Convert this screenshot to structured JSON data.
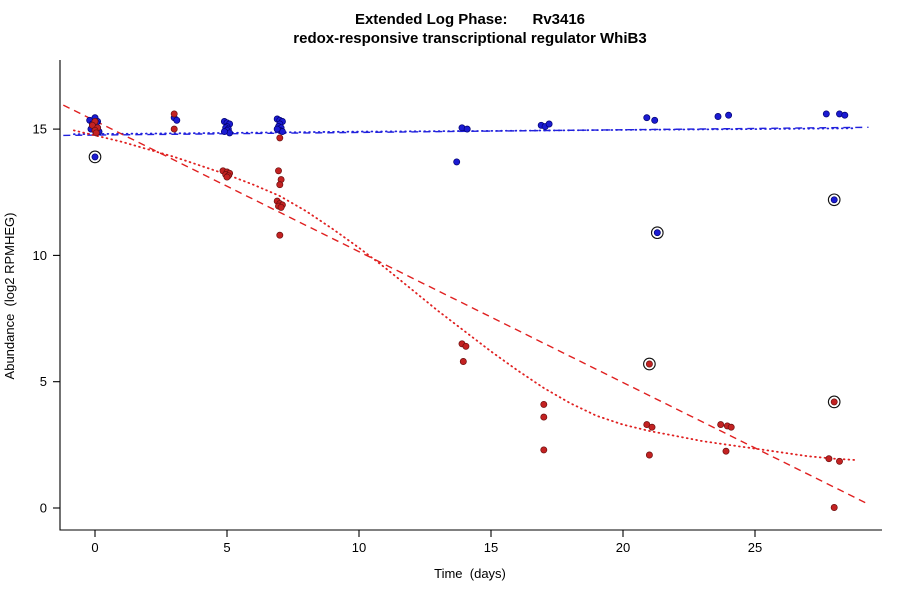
{
  "title": {
    "line1": "Extended Log Phase:      Rv3416",
    "line2": "redox-responsive transcriptional regulator WhiB3"
  },
  "axes": {
    "x_label": "Time  (days)",
    "y_label": "Abundance  (log2 RPMHEG)"
  },
  "colors": {
    "axis": "#000000",
    "blue_point": "#1b1bd2",
    "blue_point_edge": "#000070",
    "blue_line": "#2222dd",
    "red_point": "#c32222",
    "red_point_edge": "#6b0f0f",
    "red_line": "#e02020",
    "highlight_ring": "#111111"
  },
  "chart_data": {
    "type": "scatter",
    "title": "Extended Log Phase: Rv3416 — redox-responsive transcriptional regulator WhiB3",
    "xlabel": "Time (days)",
    "ylabel": "Abundance (log2 RPMHEG)",
    "xlim": [
      -1.3,
      29.5
    ],
    "ylim": [
      -0.6,
      16.6
    ],
    "x_ticks": [
      0,
      5,
      10,
      15,
      20,
      25
    ],
    "y_ticks": [
      0,
      5,
      10,
      15
    ],
    "grid": false,
    "legend": "none",
    "series": [
      {
        "name": "blue-sample",
        "color": "#1b1bd2",
        "stroke": "#000070",
        "points": [
          [
            -0.2,
            15.35
          ],
          [
            0,
            15.45
          ],
          [
            0.1,
            15.3
          ],
          [
            -0.1,
            15.2
          ],
          [
            0,
            15.15
          ],
          [
            0.1,
            15.05
          ],
          [
            -0.15,
            15.0
          ],
          [
            0,
            14.95
          ],
          [
            0.15,
            14.9
          ],
          [
            0.05,
            15.25
          ],
          [
            3,
            15.45
          ],
          [
            3.1,
            15.35
          ],
          [
            4.9,
            15.3
          ],
          [
            5,
            15.25
          ],
          [
            5.1,
            15.2
          ],
          [
            5,
            15.1
          ],
          [
            4.95,
            15.05
          ],
          [
            5.05,
            15.0
          ],
          [
            5,
            14.95
          ],
          [
            5.1,
            14.85
          ],
          [
            4.9,
            14.9
          ],
          [
            6.9,
            15.4
          ],
          [
            7,
            15.35
          ],
          [
            7.1,
            15.3
          ],
          [
            7,
            15.2
          ],
          [
            6.95,
            15.1
          ],
          [
            7.05,
            15.05
          ],
          [
            7,
            14.95
          ],
          [
            7.1,
            14.9
          ],
          [
            6.9,
            15.0
          ],
          [
            13.7,
            13.7
          ],
          [
            13.9,
            15.05
          ],
          [
            14.1,
            15.0
          ],
          [
            16.9,
            15.15
          ],
          [
            17.05,
            15.1
          ],
          [
            17.2,
            15.2
          ],
          [
            20.9,
            15.45
          ],
          [
            21.2,
            15.35
          ],
          [
            23.6,
            15.5
          ],
          [
            24.0,
            15.55
          ],
          [
            27.7,
            15.6
          ],
          [
            28.2,
            15.6
          ],
          [
            28.4,
            15.55
          ]
        ]
      },
      {
        "name": "red-sample",
        "color": "#c32222",
        "stroke": "#6b0f0f",
        "points": [
          [
            0,
            15.3
          ],
          [
            -0.1,
            15.15
          ],
          [
            0.1,
            15.05
          ],
          [
            0,
            14.95
          ],
          [
            0.05,
            14.85
          ],
          [
            3,
            15.6
          ],
          [
            3,
            15.0
          ],
          [
            4.85,
            13.35
          ],
          [
            5,
            13.3
          ],
          [
            5.1,
            13.25
          ],
          [
            4.95,
            13.2
          ],
          [
            5.05,
            13.15
          ],
          [
            5,
            13.1
          ],
          [
            7,
            14.65
          ],
          [
            6.95,
            13.35
          ],
          [
            7.05,
            13.0
          ],
          [
            7,
            12.8
          ],
          [
            6.9,
            12.15
          ],
          [
            7,
            12.05
          ],
          [
            7.1,
            12.0
          ],
          [
            6.95,
            11.95
          ],
          [
            7.05,
            11.9
          ],
          [
            7,
            10.8
          ],
          [
            13.9,
            6.5
          ],
          [
            14.05,
            6.4
          ],
          [
            13.95,
            5.8
          ],
          [
            17,
            4.1
          ],
          [
            17,
            3.6
          ],
          [
            17,
            2.3
          ],
          [
            20.9,
            3.3
          ],
          [
            21.1,
            3.2
          ],
          [
            21,
            2.1
          ],
          [
            23.7,
            3.3
          ],
          [
            23.95,
            3.25
          ],
          [
            24.1,
            3.2
          ],
          [
            23.9,
            2.25
          ],
          [
            27.8,
            1.95
          ],
          [
            28.2,
            1.85
          ],
          [
            28,
            0.02
          ]
        ]
      }
    ],
    "highlighted_points": [
      {
        "x": 0,
        "y": 13.9,
        "series": "blue-sample",
        "color": "#1b1bd2",
        "stroke": "#000070"
      },
      {
        "x": 21.3,
        "y": 10.9,
        "series": "blue-sample",
        "color": "#1b1bd2",
        "stroke": "#000070"
      },
      {
        "x": 28,
        "y": 12.2,
        "series": "blue-sample",
        "color": "#1b1bd2",
        "stroke": "#000070"
      },
      {
        "x": 21,
        "y": 5.7,
        "series": "red-sample",
        "color": "#c32222",
        "stroke": "#6b0f0f"
      },
      {
        "x": 28,
        "y": 4.2,
        "series": "red-sample",
        "color": "#c32222",
        "stroke": "#6b0f0f"
      }
    ],
    "lines": [
      {
        "name": "blue-linear-fit",
        "color": "#2222dd",
        "style": "dashed",
        "points": [
          [
            -1.2,
            14.75
          ],
          [
            29.3,
            15.07
          ]
        ]
      },
      {
        "name": "blue-smooth-fit",
        "color": "#2222dd",
        "style": "dotted",
        "points": [
          [
            -0.8,
            14.8
          ],
          [
            5,
            14.85
          ],
          [
            10,
            14.9
          ],
          [
            15,
            14.93
          ],
          [
            20,
            14.97
          ],
          [
            25,
            15.0
          ],
          [
            28.8,
            15.03
          ]
        ]
      },
      {
        "name": "red-linear-fit",
        "color": "#e02020",
        "style": "dashed",
        "points": [
          [
            -1.2,
            15.95
          ],
          [
            29.3,
            0.15
          ]
        ]
      },
      {
        "name": "red-smooth-fit",
        "color": "#e02020",
        "style": "dotted",
        "points": [
          [
            -0.8,
            14.95
          ],
          [
            0,
            14.75
          ],
          [
            1,
            14.5
          ],
          [
            2,
            14.2
          ],
          [
            3,
            13.9
          ],
          [
            4,
            13.55
          ],
          [
            5,
            13.2
          ],
          [
            6,
            12.8
          ],
          [
            7,
            12.35
          ],
          [
            8,
            11.75
          ],
          [
            9,
            11.05
          ],
          [
            10,
            10.3
          ],
          [
            11,
            9.5
          ],
          [
            12,
            8.65
          ],
          [
            13,
            7.8
          ],
          [
            14,
            7.0
          ],
          [
            15,
            6.2
          ],
          [
            16,
            5.45
          ],
          [
            17,
            4.75
          ],
          [
            18,
            4.15
          ],
          [
            19,
            3.65
          ],
          [
            20,
            3.3
          ],
          [
            21,
            3.05
          ],
          [
            22,
            2.85
          ],
          [
            23,
            2.65
          ],
          [
            24,
            2.5
          ],
          [
            25,
            2.35
          ],
          [
            26,
            2.2
          ],
          [
            27,
            2.05
          ],
          [
            28,
            1.95
          ],
          [
            28.8,
            1.9
          ]
        ]
      }
    ]
  }
}
